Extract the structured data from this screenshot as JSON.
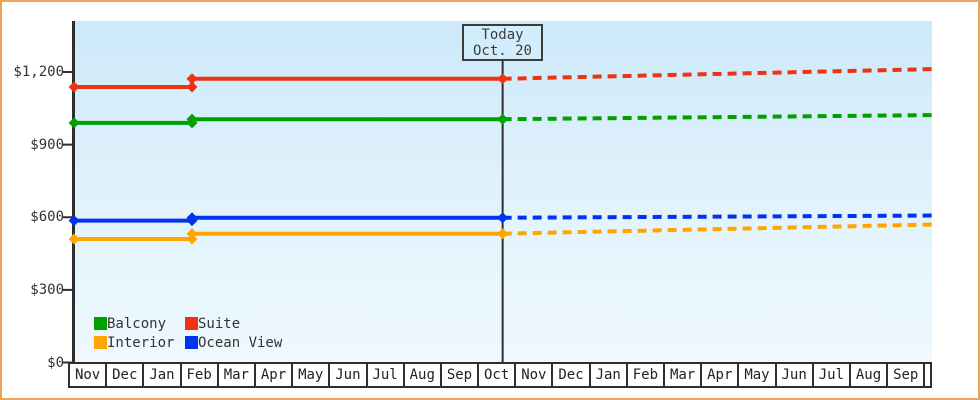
{
  "chart_data": {
    "type": "line",
    "title": "",
    "today_label": {
      "line1": "Today",
      "line2": "Oct. 20"
    },
    "y_axis": {
      "ticks": [
        {
          "label": "$1,200",
          "value": 1200
        },
        {
          "label": "$900",
          "value": 900
        },
        {
          "label": "$600",
          "value": 600
        },
        {
          "label": "$300",
          "value": 300
        },
        {
          "label": "$0",
          "value": 0
        }
      ],
      "range": [
        0,
        1410
      ],
      "unit": "USD"
    },
    "x_axis": {
      "months": [
        "Nov",
        "Dec",
        "Jan",
        "Feb",
        "Mar",
        "Apr",
        "May",
        "Jun",
        "Jul",
        "Aug",
        "Sep",
        "Oct",
        "Nov",
        "Dec",
        "Jan",
        "Feb",
        "Mar",
        "Apr",
        "May",
        "Jun",
        "Jul",
        "Aug",
        "Sep"
      ],
      "today_u": 11.63,
      "unit": "month"
    },
    "series": [
      {
        "name": "Interior",
        "color": "#FFA500",
        "solid": [
          [
            0.11,
            510
          ],
          [
            3.28,
            510
          ],
          [
            3.28,
            532
          ],
          [
            11.63,
            532
          ]
        ],
        "forecast": [
          [
            11.63,
            532
          ],
          [
            23.17,
            570
          ]
        ]
      },
      {
        "name": "Ocean View",
        "color": "#0033EE",
        "solid": [
          [
            0.11,
            586
          ],
          [
            3.28,
            586
          ],
          [
            3.28,
            598
          ],
          [
            11.63,
            598
          ]
        ],
        "forecast": [
          [
            11.63,
            598
          ],
          [
            23.17,
            607
          ]
        ]
      },
      {
        "name": "Balcony",
        "color": "#00A000",
        "solid": [
          [
            0.11,
            990
          ],
          [
            3.28,
            990
          ],
          [
            3.28,
            1005
          ],
          [
            11.63,
            1005
          ]
        ],
        "forecast": [
          [
            11.63,
            1005
          ],
          [
            23.17,
            1022
          ]
        ]
      },
      {
        "name": "Suite",
        "color": "#EE3311",
        "solid": [
          [
            0.11,
            1138
          ],
          [
            3.28,
            1138
          ],
          [
            3.28,
            1172
          ],
          [
            11.63,
            1172
          ]
        ],
        "forecast": [
          [
            11.63,
            1172
          ],
          [
            23.17,
            1212
          ]
        ]
      }
    ],
    "legend": {
      "position": "bottom-left",
      "items": [
        {
          "label": "Balcony",
          "color": "#00A000"
        },
        {
          "label": "Suite",
          "color": "#EE3311"
        },
        {
          "label": "Interior",
          "color": "#FFA500"
        },
        {
          "label": "Ocean View",
          "color": "#0033EE"
        }
      ]
    },
    "grid": "off",
    "colors": {
      "axis": "#2e2e2e",
      "text": "#333333",
      "frame_border": "#ECA557",
      "plot_bg_top": "#cde9f9",
      "plot_bg_bottom": "#eff9fe",
      "today_box_bg": "#d2edfb"
    }
  }
}
